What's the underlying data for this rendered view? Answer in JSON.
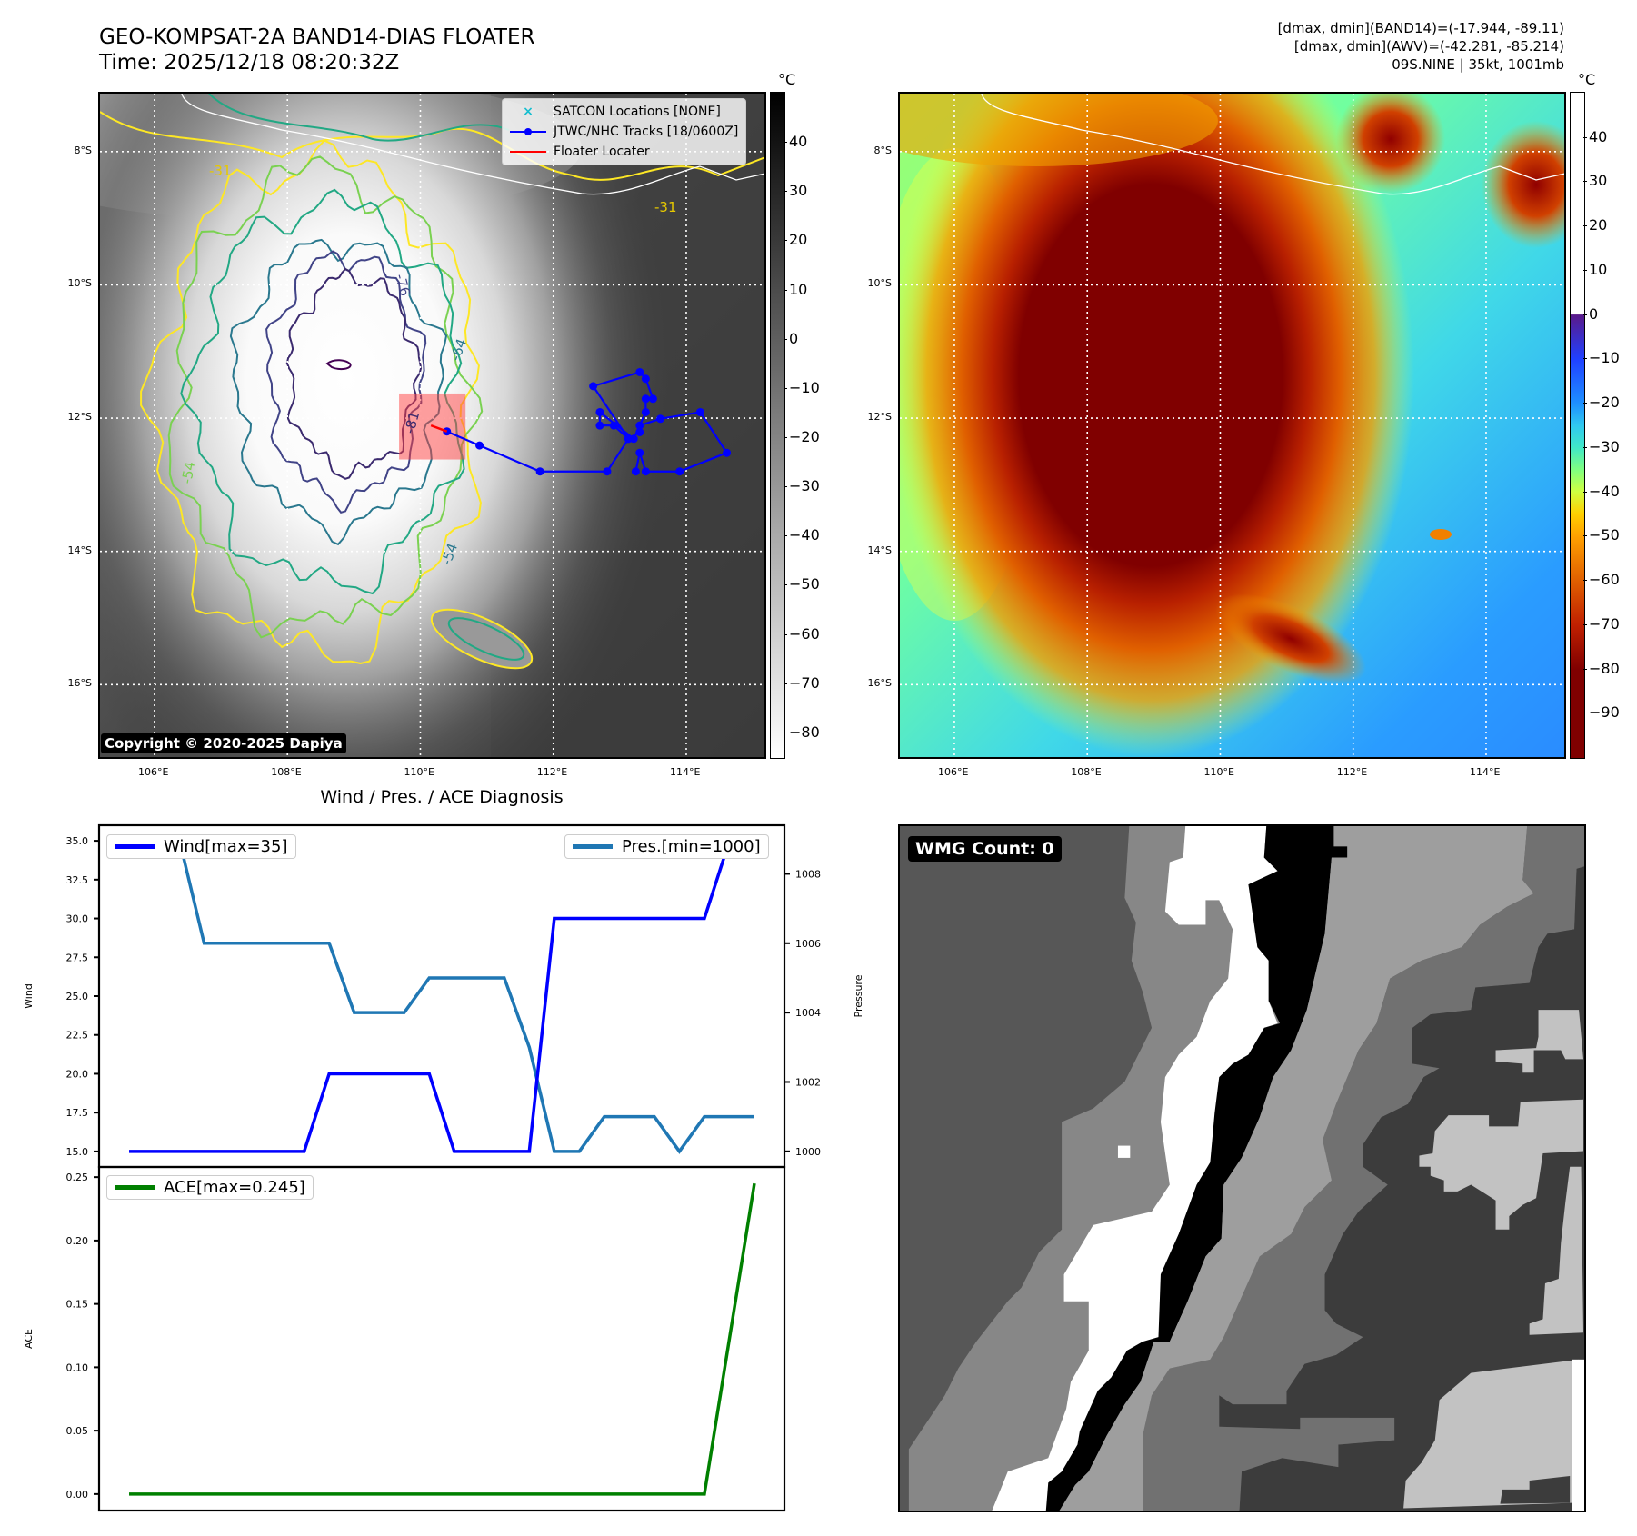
{
  "header": {
    "title": "GEO-KOMPSAT-2A BAND14-DIAS FLOATER",
    "time": "Time: 2025/12/18 08:20:32Z",
    "info_band14": "[dmax, dmin](BAND14)=(-17.944, -89.11)",
    "info_awv": "[dmax, dmin](AWV)=(-42.281, -85.214)",
    "storm": "09S.NINE | 35kt, 1001mb"
  },
  "maps": {
    "lon_ticks": [
      "106°E",
      "108°E",
      "110°E",
      "112°E",
      "114°E"
    ],
    "lat_ticks": [
      "8°S",
      "10°S",
      "12°S",
      "14°S",
      "16°S"
    ],
    "lon_values": [
      106,
      108,
      110,
      112,
      114
    ],
    "lat_values": [
      -8,
      -10,
      -12,
      -14,
      -16
    ],
    "lon_range": [
      105.18,
      115.19
    ],
    "lat_range": [
      -17.1,
      -7.13
    ],
    "unit": "°C",
    "copyright": "Copyright © 2020-2025 Dapiya",
    "contour_labels": [
      "-31",
      "-31",
      "-54",
      "-54",
      "-64",
      "-76",
      "-81"
    ],
    "legend": {
      "satcon": "SATCON Locations [NONE]",
      "jtwc": "JTWC/NHC Tracks [18/0600Z]",
      "floater": "Floater Locater"
    },
    "track": [
      [
        110.4,
        -12.2
      ],
      [
        110.89,
        -12.41
      ],
      [
        111.8,
        -12.8
      ],
      [
        112.81,
        -12.8
      ],
      [
        113.13,
        -12.31
      ],
      [
        112.6,
        -11.52
      ],
      [
        113.3,
        -11.31
      ],
      [
        113.39,
        -11.41
      ],
      [
        113.5,
        -11.71
      ],
      [
        113.39,
        -11.71
      ],
      [
        113.39,
        -11.91
      ],
      [
        113.21,
        -12.31
      ],
      [
        112.7,
        -11.91
      ],
      [
        112.7,
        -12.11
      ],
      [
        112.91,
        -12.11
      ],
      [
        113.13,
        -12.31
      ],
      [
        113.3,
        -12.21
      ],
      [
        113.3,
        -12.11
      ],
      [
        113.61,
        -12.01
      ],
      [
        114.21,
        -11.91
      ],
      [
        114.61,
        -12.52
      ],
      [
        113.9,
        -12.8
      ],
      [
        113.39,
        -12.8
      ],
      [
        113.3,
        -12.52
      ],
      [
        113.24,
        -12.8
      ]
    ],
    "floater_line": [
      [
        110.16,
        -12.11
      ],
      [
        110.4,
        -12.2
      ]
    ],
    "floater_box": {
      "lon": [
        109.68,
        110.68
      ],
      "lat": [
        -11.63,
        -12.62
      ]
    },
    "colors": {
      "track": "#0000ff",
      "floater": "#ff0000",
      "satcon": "#17becf"
    }
  },
  "colorbar_ir": {
    "ticks": [
      "40",
      "30",
      "20",
      "10",
      "0",
      "−10",
      "−20",
      "−30",
      "−40",
      "−50",
      "−60",
      "−70",
      "−80"
    ],
    "values": [
      40,
      30,
      20,
      10,
      0,
      -10,
      -20,
      -30,
      -40,
      -50,
      -60,
      -70,
      -80
    ],
    "range": [
      -85,
      50
    ]
  },
  "colorbar_awv": {
    "ticks": [
      "40",
      "30",
      "20",
      "10",
      "0",
      "−10",
      "−20",
      "−30",
      "−40",
      "−50",
      "−60",
      "−70",
      "−80",
      "−90"
    ],
    "values": [
      40,
      30,
      20,
      10,
      0,
      -10,
      -20,
      -30,
      -40,
      -50,
      -60,
      -70,
      -80,
      -90
    ],
    "range": [
      -100,
      50
    ]
  },
  "wmg": {
    "label": "WMG Count: 0"
  },
  "chart_data": [
    {
      "type": "line",
      "title": "Wind / Pres. / ACE Diagnosis",
      "xlabel": "",
      "ylabel": "Wind",
      "y2label": "Pressure",
      "x": [
        0,
        1,
        2,
        3,
        4,
        5,
        6,
        7,
        8,
        9,
        10,
        11,
        12,
        13,
        14,
        15,
        16,
        17,
        18,
        19,
        20,
        21,
        22,
        23,
        24,
        25
      ],
      "xlim": [
        -1.2,
        26.2
      ],
      "ylim": [
        14.0,
        36.0
      ],
      "y2lim": [
        999.55,
        1009.4
      ],
      "yticks": [
        "15.0",
        "17.5",
        "20.0",
        "22.5",
        "25.0",
        "27.5",
        "30.0",
        "32.5",
        "35.0"
      ],
      "ytick_values": [
        15,
        17.5,
        20,
        22.5,
        25,
        27.5,
        30,
        32.5,
        35
      ],
      "y2ticks": [
        "1000",
        "1002",
        "1004",
        "1006",
        "1008"
      ],
      "y2tick_values": [
        1000,
        1002,
        1004,
        1006,
        1008
      ],
      "series": [
        {
          "name": "Wind[max=35]",
          "axis": "left",
          "color": "#0000ff",
          "values": [
            15,
            15,
            15,
            15,
            15,
            15,
            15,
            15,
            20,
            20,
            20,
            20,
            20,
            15,
            15,
            15,
            15,
            30,
            30,
            30,
            30,
            30,
            30,
            30,
            35,
            35
          ]
        },
        {
          "name": "Pres.[min=1000]",
          "axis": "right",
          "color": "#1f77b4",
          "values": [
            1009,
            1009,
            1009,
            1006,
            1006,
            1006,
            1006,
            1006,
            1006,
            1004,
            1004,
            1004,
            1005,
            1005,
            1005,
            1005,
            1003,
            1000,
            1000,
            1001,
            1001,
            1001,
            1000,
            1001,
            1001,
            1001
          ]
        }
      ]
    },
    {
      "type": "line",
      "ylabel": "ACE",
      "x": [
        0,
        1,
        2,
        3,
        4,
        5,
        6,
        7,
        8,
        9,
        10,
        11,
        12,
        13,
        14,
        15,
        16,
        17,
        18,
        19,
        20,
        21,
        22,
        23,
        24,
        25
      ],
      "xlim": [
        -1.2,
        26.2
      ],
      "ylim": [
        -0.013,
        0.258
      ],
      "yticks": [
        "0.00",
        "0.05",
        "0.10",
        "0.15",
        "0.20",
        "0.25"
      ],
      "ytick_values": [
        0,
        0.05,
        0.1,
        0.15,
        0.2,
        0.25
      ],
      "series": [
        {
          "name": "ACE[max=0.245]",
          "color": "#008000",
          "values": [
            0,
            0,
            0,
            0,
            0,
            0,
            0,
            0,
            0,
            0,
            0,
            0,
            0,
            0,
            0,
            0,
            0,
            0,
            0,
            0,
            0,
            0,
            0,
            0,
            0.1225,
            0.245
          ]
        }
      ]
    }
  ]
}
